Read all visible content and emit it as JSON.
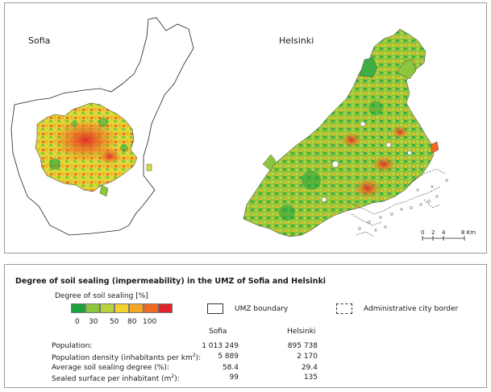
{
  "map": {
    "cities": [
      {
        "name": "Sofia"
      },
      {
        "name": "Helsinki"
      }
    ],
    "scale_bar": {
      "ticks": [
        "0",
        "2",
        "4",
        "8 Km"
      ]
    },
    "colors": {
      "c0": "#1aa23d",
      "c30": "#8cc63e",
      "c50": "#d6d93a",
      "c80": "#f5b525",
      "c100a": "#ef6b22",
      "c100b": "#e0242a"
    }
  },
  "legend": {
    "title": "Degree of soil sealing (impermeability) in the UMZ of Sofia and Helsinki",
    "ramp_title": "Degree of soil sealing [%]",
    "ramp_colors": [
      "#1aa23d",
      "#8cc63e",
      "#b8d23b",
      "#f5d22b",
      "#f5a623",
      "#ef6b22",
      "#e0242a"
    ],
    "ticks": [
      "0",
      "30",
      "50",
      "80",
      "100"
    ],
    "umz_label": "UMZ boundary",
    "admin_label": "Administrative city border"
  },
  "stats": {
    "col_sofia": "Sofia",
    "col_helsinki": "Helsinki",
    "rows": [
      {
        "label": "Population:",
        "sofia": "1 013 249",
        "helsinki": "895 738"
      },
      {
        "label": "Population density (inhabitants per km",
        "sup": "2",
        "label_end": "):",
        "sofia": "5 889",
        "helsinki": "2 170"
      },
      {
        "label": "Average soil sealing degree (%):",
        "sofia": "58.4",
        "helsinki": "29.4"
      },
      {
        "label": "Sealed surface per inhabitant (m",
        "sup": "2",
        "label_end": "):",
        "sofia": "99",
        "helsinki": "135"
      }
    ]
  }
}
